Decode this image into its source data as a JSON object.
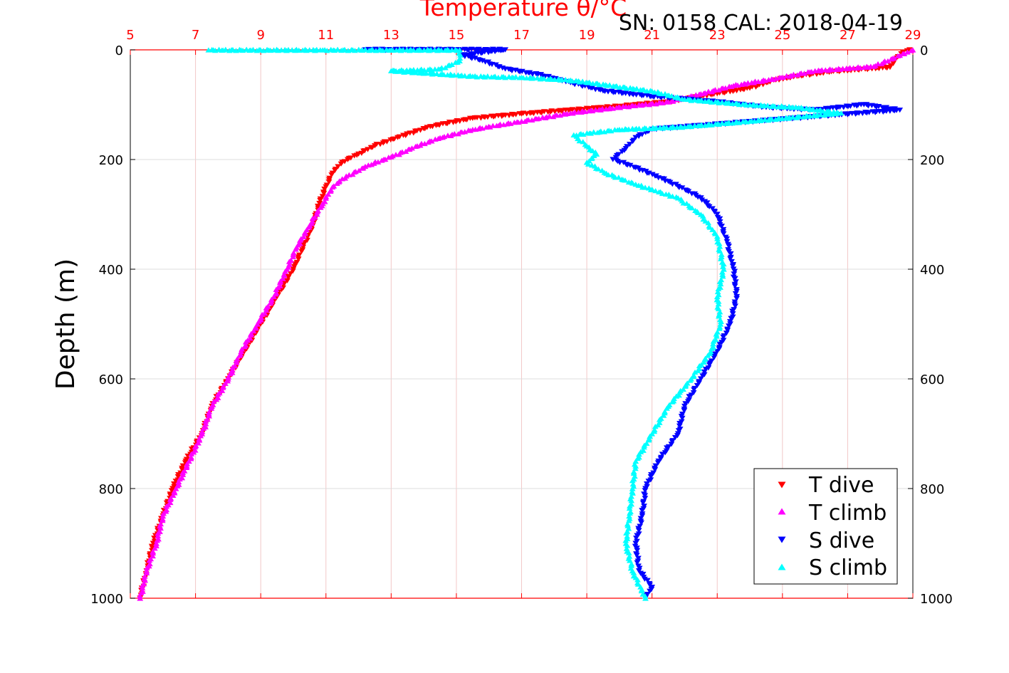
{
  "chart_data": {
    "type": "scatter",
    "title": "Temperature θ/°C",
    "subtitle": "SN: 0158  CAL: 2018-04-19",
    "xlabel": "Temperature θ/°C",
    "ylabel": "Depth (m)",
    "xlim": [
      5,
      29
    ],
    "ylim": [
      0,
      1000
    ],
    "y_reversed": true,
    "grid": true,
    "legend_position": "bottom-right",
    "x_ticks": [
      "5",
      "7",
      "9",
      "11",
      "13",
      "15",
      "17",
      "19",
      "21",
      "23",
      "25",
      "27",
      "29"
    ],
    "y_ticks": [
      "0",
      "200",
      "400",
      "600",
      "800",
      "1000"
    ],
    "colors": {
      "axis_top": "#ff0000",
      "grid_x": "#f2c8c8",
      "grid_y": "#dcdcdc",
      "t_dive": "#ff0000",
      "t_climb": "#ff00ff",
      "s_dive": "#0000ff",
      "s_climb": "#00ffff"
    },
    "series": [
      {
        "name": "T dive",
        "marker": "triangle-down",
        "color": "#ff0000",
        "points": [
          [
            28.9,
            0
          ],
          [
            28.7,
            5
          ],
          [
            28.5,
            15
          ],
          [
            28.4,
            25
          ],
          [
            28.3,
            32
          ],
          [
            26.5,
            40
          ],
          [
            25.5,
            48
          ],
          [
            24.8,
            55
          ],
          [
            24.0,
            70
          ],
          [
            23.0,
            80
          ],
          [
            21.5,
            95
          ],
          [
            20.0,
            103
          ],
          [
            18.5,
            110
          ],
          [
            17.0,
            117
          ],
          [
            15.5,
            125
          ],
          [
            14.2,
            140
          ],
          [
            13.2,
            160
          ],
          [
            12.5,
            175
          ],
          [
            12.0,
            190
          ],
          [
            11.5,
            205
          ],
          [
            11.2,
            225
          ],
          [
            11.0,
            250
          ],
          [
            10.8,
            280
          ],
          [
            10.6,
            320
          ],
          [
            10.3,
            360
          ],
          [
            10.0,
            400
          ],
          [
            9.5,
            450
          ],
          [
            9.0,
            500
          ],
          [
            8.5,
            550
          ],
          [
            8.0,
            600
          ],
          [
            7.5,
            650
          ],
          [
            7.2,
            700
          ],
          [
            6.7,
            750
          ],
          [
            6.3,
            800
          ],
          [
            6.0,
            850
          ],
          [
            5.7,
            900
          ],
          [
            5.5,
            950
          ],
          [
            5.3,
            1000
          ]
        ]
      },
      {
        "name": "T climb",
        "marker": "triangle-up",
        "color": "#ff00ff",
        "points": [
          [
            29.0,
            0
          ],
          [
            28.6,
            10
          ],
          [
            27.8,
            30
          ],
          [
            26.0,
            38
          ],
          [
            24.8,
            52
          ],
          [
            23.5,
            65
          ],
          [
            22.5,
            80
          ],
          [
            21.5,
            95
          ],
          [
            20.2,
            103
          ],
          [
            18.5,
            115
          ],
          [
            17.0,
            130
          ],
          [
            15.5,
            145
          ],
          [
            14.5,
            160
          ],
          [
            13.8,
            175
          ],
          [
            13.0,
            195
          ],
          [
            12.3,
            210
          ],
          [
            11.5,
            235
          ],
          [
            11.2,
            250
          ],
          [
            10.9,
            280
          ],
          [
            10.5,
            320
          ],
          [
            10.1,
            360
          ],
          [
            9.8,
            400
          ],
          [
            9.4,
            450
          ],
          [
            8.9,
            500
          ],
          [
            8.4,
            550
          ],
          [
            8.0,
            600
          ],
          [
            7.5,
            650
          ],
          [
            7.2,
            700
          ],
          [
            6.8,
            750
          ],
          [
            6.4,
            800
          ],
          [
            6.0,
            850
          ],
          [
            5.8,
            900
          ],
          [
            5.5,
            950
          ],
          [
            5.3,
            1000
          ]
        ]
      },
      {
        "name": "S dive",
        "marker": "triangle-down",
        "color": "#0000ff",
        "points": [
          [
            12.2,
            0
          ],
          [
            13.5,
            0
          ],
          [
            15.0,
            0
          ],
          [
            16.5,
            0
          ],
          [
            15.2,
            10
          ],
          [
            15.8,
            20
          ],
          [
            16.5,
            35
          ],
          [
            17.5,
            45
          ],
          [
            18.5,
            60
          ],
          [
            19.5,
            75
          ],
          [
            21.0,
            85
          ],
          [
            23.0,
            95
          ],
          [
            24.5,
            105
          ],
          [
            26.0,
            110
          ],
          [
            27.5,
            100
          ],
          [
            28.6,
            110
          ],
          [
            21.0,
            145
          ],
          [
            20.5,
            160
          ],
          [
            20.2,
            180
          ],
          [
            19.8,
            200
          ],
          [
            20.5,
            215
          ],
          [
            21.5,
            240
          ],
          [
            22.5,
            270
          ],
          [
            23.0,
            300
          ],
          [
            23.3,
            350
          ],
          [
            23.5,
            400
          ],
          [
            23.6,
            450
          ],
          [
            23.4,
            500
          ],
          [
            23.0,
            550
          ],
          [
            22.5,
            600
          ],
          [
            22.0,
            650
          ],
          [
            21.8,
            700
          ],
          [
            21.2,
            750
          ],
          [
            20.8,
            800
          ],
          [
            20.7,
            850
          ],
          [
            20.5,
            900
          ],
          [
            20.6,
            950
          ],
          [
            21.0,
            980
          ],
          [
            20.8,
            1000
          ]
        ]
      },
      {
        "name": "S climb",
        "marker": "triangle-up",
        "color": "#00ffff",
        "points": [
          [
            7.4,
            0
          ],
          [
            9.4,
            0
          ],
          [
            10.9,
            0
          ],
          [
            13.0,
            0
          ],
          [
            15.1,
            0
          ],
          [
            15.1,
            20
          ],
          [
            14.5,
            35
          ],
          [
            13.0,
            38
          ],
          [
            15.5,
            48
          ],
          [
            17.0,
            50
          ],
          [
            18.5,
            55
          ],
          [
            21.0,
            75
          ],
          [
            22.0,
            90
          ],
          [
            24.0,
            100
          ],
          [
            25.5,
            105
          ],
          [
            26.8,
            115
          ],
          [
            24.0,
            130
          ],
          [
            22.0,
            140
          ],
          [
            20.0,
            145
          ],
          [
            18.6,
            155
          ],
          [
            19.0,
            175
          ],
          [
            19.3,
            190
          ],
          [
            19.0,
            205
          ],
          [
            19.6,
            225
          ],
          [
            20.5,
            245
          ],
          [
            21.8,
            270
          ],
          [
            22.5,
            300
          ],
          [
            23.0,
            340
          ],
          [
            23.2,
            400
          ],
          [
            23.0,
            450
          ],
          [
            23.1,
            500
          ],
          [
            22.8,
            550
          ],
          [
            22.2,
            600
          ],
          [
            21.5,
            650
          ],
          [
            21.0,
            700
          ],
          [
            20.5,
            750
          ],
          [
            20.4,
            800
          ],
          [
            20.3,
            850
          ],
          [
            20.2,
            900
          ],
          [
            20.4,
            950
          ],
          [
            20.8,
            1000
          ]
        ]
      }
    ]
  }
}
